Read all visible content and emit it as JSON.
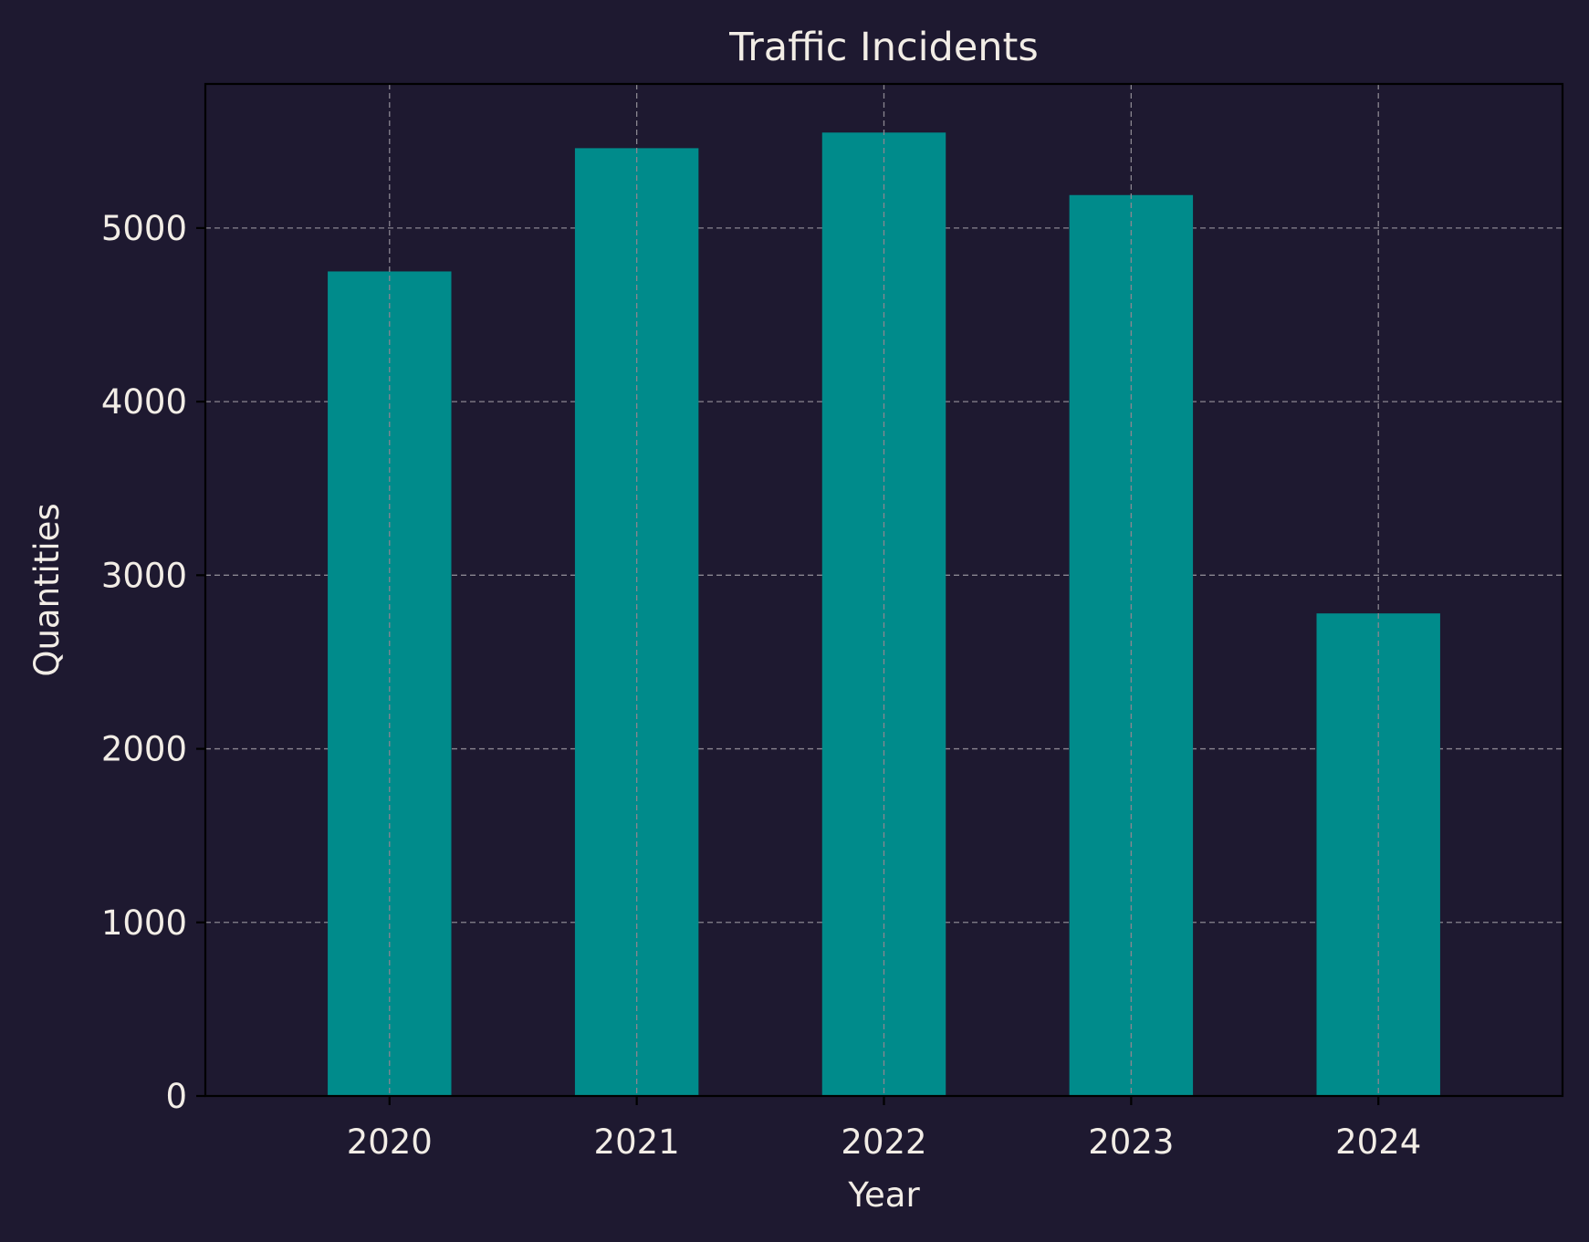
{
  "chart_data": {
    "type": "bar",
    "title": "Traffic Incidents",
    "xlabel": "Year",
    "ylabel": "Quantities",
    "categories": [
      "2020",
      "2021",
      "2022",
      "2023",
      "2024"
    ],
    "values": [
      4750,
      5460,
      5550,
      5190,
      2780
    ],
    "ylim": [
      0,
      5830
    ],
    "yticks": [
      0,
      1000,
      2000,
      3000,
      4000,
      5000
    ],
    "grid": true,
    "bar_color": "#008b8b",
    "background_color": "#1e1930"
  }
}
